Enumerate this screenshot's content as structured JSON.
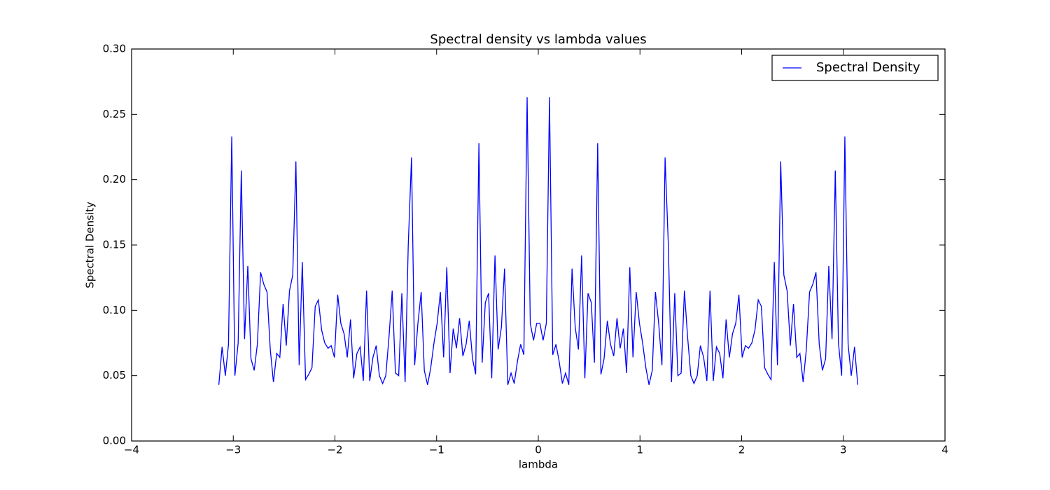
{
  "chart_data": {
    "type": "line",
    "title": "Spectral density vs lambda values",
    "xlabel": "lambda",
    "ylabel": "Spectral Density",
    "x": [
      -3.142,
      -3.11,
      -3.078,
      -3.047,
      -3.015,
      -2.984,
      -2.952,
      -2.921,
      -2.889,
      -2.857,
      -2.826,
      -2.794,
      -2.763,
      -2.731,
      -2.7,
      -2.668,
      -2.636,
      -2.605,
      -2.573,
      -2.542,
      -2.51,
      -2.479,
      -2.447,
      -2.415,
      -2.384,
      -2.352,
      -2.321,
      -2.289,
      -2.258,
      -2.226,
      -2.194,
      -2.163,
      -2.131,
      -2.1,
      -2.068,
      -2.037,
      -2.005,
      -1.973,
      -1.942,
      -1.91,
      -1.879,
      -1.847,
      -1.816,
      -1.784,
      -1.752,
      -1.721,
      -1.689,
      -1.658,
      -1.626,
      -1.594,
      -1.563,
      -1.531,
      -1.5,
      -1.468,
      -1.437,
      -1.405,
      -1.373,
      -1.342,
      -1.31,
      -1.279,
      -1.247,
      -1.216,
      -1.184,
      -1.152,
      -1.121,
      -1.089,
      -1.058,
      -1.026,
      -0.995,
      -0.963,
      -0.931,
      -0.9,
      -0.868,
      -0.837,
      -0.805,
      -0.774,
      -0.742,
      -0.71,
      -0.679,
      -0.647,
      -0.616,
      -0.584,
      -0.552,
      -0.521,
      -0.489,
      -0.458,
      -0.426,
      -0.395,
      -0.363,
      -0.332,
      -0.3,
      -0.268,
      -0.237,
      -0.205,
      -0.174,
      -0.142,
      -0.11,
      -0.079,
      -0.047,
      -0.016,
      0.016,
      0.047,
      0.079,
      0.11,
      0.142,
      0.174,
      0.205,
      0.237,
      0.268,
      0.3,
      0.332,
      0.363,
      0.395,
      0.426,
      0.458,
      0.489,
      0.521,
      0.552,
      0.584,
      0.616,
      0.647,
      0.679,
      0.71,
      0.742,
      0.774,
      0.805,
      0.837,
      0.868,
      0.9,
      0.931,
      0.963,
      0.995,
      1.026,
      1.058,
      1.089,
      1.121,
      1.152,
      1.184,
      1.216,
      1.247,
      1.279,
      1.31,
      1.342,
      1.373,
      1.405,
      1.437,
      1.468,
      1.5,
      1.531,
      1.563,
      1.594,
      1.626,
      1.658,
      1.689,
      1.721,
      1.752,
      1.784,
      1.816,
      1.847,
      1.879,
      1.91,
      1.942,
      1.973,
      2.005,
      2.037,
      2.068,
      2.1,
      2.131,
      2.163,
      2.194,
      2.226,
      2.258,
      2.289,
      2.321,
      2.352,
      2.384,
      2.415,
      2.447,
      2.479,
      2.51,
      2.542,
      2.573,
      2.605,
      2.636,
      2.668,
      2.7,
      2.731,
      2.763,
      2.794,
      2.826,
      2.857,
      2.889,
      2.921,
      2.952,
      2.984,
      3.015,
      3.047,
      3.078,
      3.11,
      3.142
    ],
    "series": [
      {
        "name": "Spectral Density",
        "color": "#0000ff",
        "values": [
          0.043,
          0.072,
          0.05,
          0.074,
          0.233,
          0.05,
          0.075,
          0.207,
          0.078,
          0.134,
          0.063,
          0.054,
          0.074,
          0.129,
          0.12,
          0.114,
          0.07,
          0.045,
          0.067,
          0.064,
          0.105,
          0.073,
          0.115,
          0.127,
          0.214,
          0.058,
          0.137,
          0.047,
          0.051,
          0.056,
          0.103,
          0.108,
          0.085,
          0.075,
          0.071,
          0.073,
          0.064,
          0.112,
          0.09,
          0.082,
          0.064,
          0.093,
          0.048,
          0.067,
          0.072,
          0.046,
          0.115,
          0.046,
          0.064,
          0.073,
          0.05,
          0.044,
          0.05,
          0.08,
          0.115,
          0.052,
          0.05,
          0.113,
          0.045,
          0.15,
          0.217,
          0.058,
          0.09,
          0.114,
          0.054,
          0.043,
          0.056,
          0.075,
          0.09,
          0.114,
          0.064,
          0.133,
          0.052,
          0.086,
          0.071,
          0.094,
          0.065,
          0.074,
          0.092,
          0.063,
          0.051,
          0.228,
          0.06,
          0.106,
          0.113,
          0.048,
          0.142,
          0.07,
          0.087,
          0.132,
          0.043,
          0.052,
          0.044,
          0.061,
          0.074,
          0.066,
          0.263,
          0.09,
          0.077,
          0.09,
          0.09,
          0.077,
          0.09,
          0.263,
          0.066,
          0.074,
          0.061,
          0.044,
          0.052,
          0.043,
          0.132,
          0.087,
          0.07,
          0.142,
          0.048,
          0.113,
          0.106,
          0.06,
          0.228,
          0.051,
          0.063,
          0.092,
          0.074,
          0.065,
          0.094,
          0.071,
          0.086,
          0.052,
          0.133,
          0.064,
          0.114,
          0.09,
          0.075,
          0.056,
          0.043,
          0.054,
          0.114,
          0.09,
          0.058,
          0.217,
          0.15,
          0.045,
          0.113,
          0.05,
          0.052,
          0.115,
          0.08,
          0.05,
          0.044,
          0.05,
          0.073,
          0.064,
          0.046,
          0.115,
          0.046,
          0.072,
          0.067,
          0.048,
          0.093,
          0.064,
          0.082,
          0.09,
          0.112,
          0.064,
          0.073,
          0.071,
          0.075,
          0.085,
          0.108,
          0.103,
          0.056,
          0.051,
          0.047,
          0.137,
          0.058,
          0.214,
          0.127,
          0.115,
          0.073,
          0.105,
          0.064,
          0.067,
          0.045,
          0.07,
          0.114,
          0.12,
          0.129,
          0.074,
          0.054,
          0.063,
          0.134,
          0.078,
          0.207,
          0.075,
          0.05,
          0.233,
          0.074,
          0.05,
          0.072,
          0.043
        ]
      }
    ],
    "xlim": [
      -4,
      4
    ],
    "xticks": [
      {
        "value": -4,
        "label": "−4"
      },
      {
        "value": -3,
        "label": "−3"
      },
      {
        "value": -2,
        "label": "−2"
      },
      {
        "value": -1,
        "label": "−1"
      },
      0,
      1,
      2,
      3,
      4
    ],
    "ylim": [
      0,
      0.3
    ],
    "yticks": [
      {
        "value": 0,
        "label": "0.00"
      },
      {
        "value": 0.05,
        "label": "0.05"
      },
      {
        "value": 0.1,
        "label": "0.10"
      },
      {
        "value": 0.15,
        "label": "0.15"
      },
      {
        "value": 0.2,
        "label": "0.20"
      },
      {
        "value": 0.25,
        "label": "0.25"
      },
      {
        "value": 0.3,
        "label": "0.30"
      }
    ],
    "grid": false,
    "legend": "upper right"
  }
}
